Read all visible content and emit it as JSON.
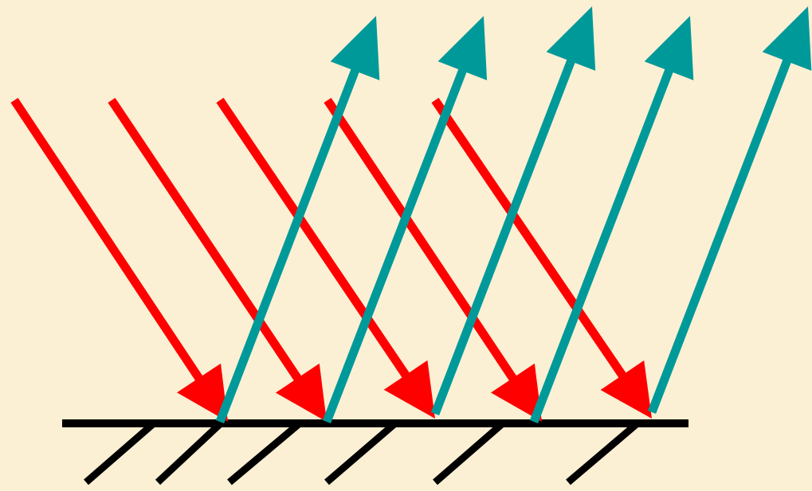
{
  "diagram": {
    "kind": "reflection of parallel rays from a plane mirror",
    "incident_ray_count": 5,
    "reflected_ray_count": 5,
    "mirror_hatch_count": 6
  },
  "colors": {
    "background": "#FCF0D4",
    "incident_ray": "#FF0000",
    "reflected_ray": "#009999",
    "mirror": "#000000"
  },
  "icons": {
    "incident": "arrow-down-right-icon",
    "reflected": "arrow-up-right-icon"
  }
}
